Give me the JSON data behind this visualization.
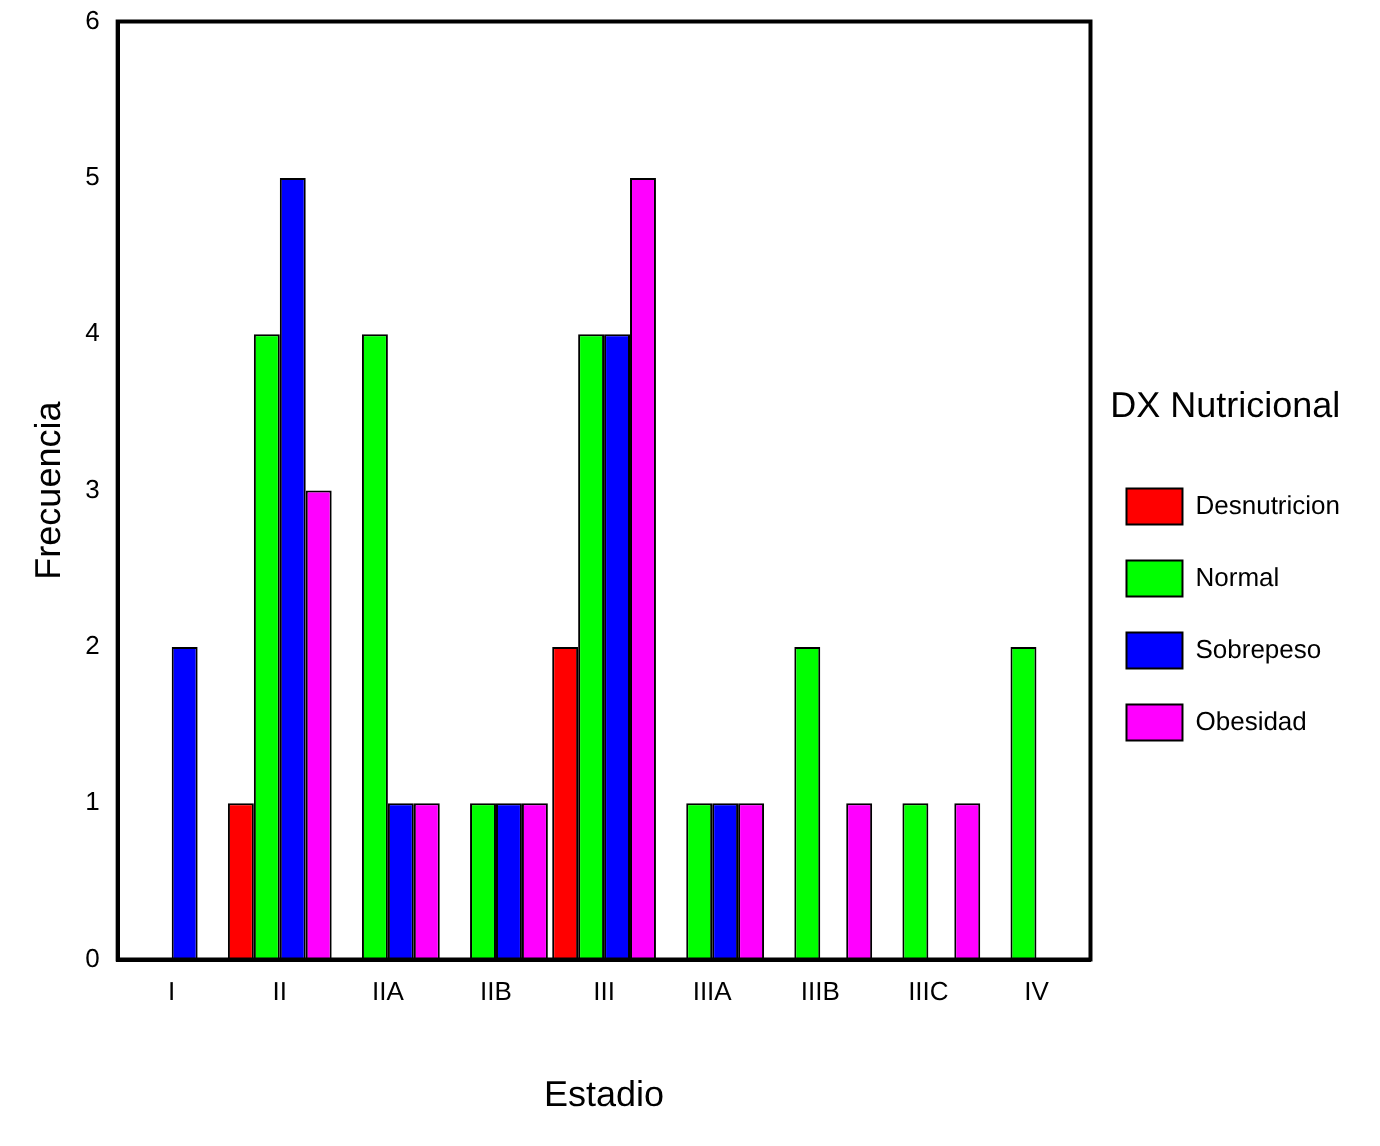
{
  "chart_data": {
    "type": "bar",
    "xlabel": "Estadio",
    "ylabel": "Frecuencia",
    "legend_title": "DX Nutricional",
    "categories": [
      "I",
      "II",
      "IIA",
      "IIB",
      "III",
      "IIIA",
      "IIIB",
      "IIIC",
      "IV"
    ],
    "series": [
      {
        "name": "Desnutricion",
        "color": "#ff0000",
        "values": [
          null,
          1,
          null,
          null,
          2,
          null,
          null,
          null,
          null
        ]
      },
      {
        "name": "Normal",
        "color": "#00ff00",
        "values": [
          null,
          4,
          4,
          1,
          4,
          1,
          2,
          1,
          2
        ]
      },
      {
        "name": "Sobrepeso",
        "color": "#0000ff",
        "values": [
          2,
          5,
          1,
          1,
          4,
          1,
          null,
          null,
          null
        ]
      },
      {
        "name": "Obesidad",
        "color": "#ff00ff",
        "values": [
          null,
          3,
          1,
          1,
          5,
          1,
          1,
          1,
          null
        ]
      }
    ],
    "ylim": [
      0,
      6
    ],
    "yticks": [
      0,
      1,
      2,
      3,
      4,
      5,
      6
    ],
    "grid": false,
    "legend": "right"
  }
}
